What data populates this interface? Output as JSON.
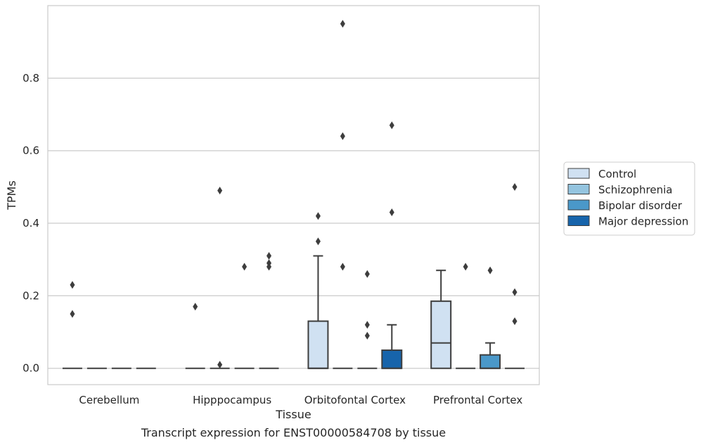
{
  "chart_data": {
    "type": "box",
    "xlabel": "Tissue",
    "ylabel": "TPMs",
    "caption": "Transcript expression for ENST00000584708 by tissue",
    "ylim": [
      -0.045,
      1.0
    ],
    "yticks": [
      0.0,
      0.2,
      0.4,
      0.6,
      0.8
    ],
    "ytick_labels": [
      "0.0",
      "0.2",
      "0.4",
      "0.6",
      "0.8"
    ],
    "grid": "horizontal",
    "legend_position": "right",
    "categories": [
      "Cerebellum",
      "Hipppocampus",
      "Orbitofontal Cortex",
      "Prefrontal Cortex"
    ],
    "series": [
      {
        "name": "Control",
        "color": "#d0e1f2",
        "boxes": [
          {
            "q1": 0,
            "median": 0,
            "q3": 0,
            "whisker_low": 0,
            "whisker_high": 0,
            "outliers": [
              0.23,
              0.15
            ]
          },
          {
            "q1": 0,
            "median": 0,
            "q3": 0,
            "whisker_low": 0,
            "whisker_high": 0,
            "outliers": [
              0.17
            ]
          },
          {
            "q1": 0,
            "median": 0,
            "q3": 0.13,
            "whisker_low": 0,
            "whisker_high": 0.31,
            "outliers": [
              0.42,
              0.35
            ]
          },
          {
            "q1": 0,
            "median": 0.07,
            "q3": 0.185,
            "whisker_low": 0,
            "whisker_high": 0.27,
            "outliers": []
          }
        ]
      },
      {
        "name": "Schizophrenia",
        "color": "#94c4df",
        "boxes": [
          {
            "q1": 0,
            "median": 0,
            "q3": 0,
            "whisker_low": 0,
            "whisker_high": 0,
            "outliers": []
          },
          {
            "q1": 0,
            "median": 0,
            "q3": 0,
            "whisker_low": 0,
            "whisker_high": 0,
            "outliers": [
              0.49,
              0.01
            ]
          },
          {
            "q1": 0,
            "median": 0,
            "q3": 0,
            "whisker_low": 0,
            "whisker_high": 0,
            "outliers": [
              0.95,
              0.64,
              0.28
            ]
          },
          {
            "q1": 0,
            "median": 0,
            "q3": 0,
            "whisker_low": 0,
            "whisker_high": 0,
            "outliers": [
              0.28
            ]
          }
        ]
      },
      {
        "name": "Bipolar disorder",
        "color": "#4a98c9",
        "boxes": [
          {
            "q1": 0,
            "median": 0,
            "q3": 0,
            "whisker_low": 0,
            "whisker_high": 0,
            "outliers": []
          },
          {
            "q1": 0,
            "median": 0,
            "q3": 0,
            "whisker_low": 0,
            "whisker_high": 0,
            "outliers": [
              0.28
            ]
          },
          {
            "q1": 0,
            "median": 0,
            "q3": 0,
            "whisker_low": 0,
            "whisker_high": 0,
            "outliers": [
              0.26,
              0.12,
              0.09
            ]
          },
          {
            "q1": 0,
            "median": 0,
            "q3": 0.037,
            "whisker_low": 0,
            "whisker_high": 0.07,
            "outliers": [
              0.27
            ]
          }
        ]
      },
      {
        "name": "Major depression",
        "color": "#1764ab",
        "boxes": [
          {
            "q1": 0,
            "median": 0,
            "q3": 0,
            "whisker_low": 0,
            "whisker_high": 0,
            "outliers": []
          },
          {
            "q1": 0,
            "median": 0,
            "q3": 0,
            "whisker_low": 0,
            "whisker_high": 0,
            "outliers": [
              0.31,
              0.29,
              0.28
            ]
          },
          {
            "q1": 0,
            "median": 0,
            "q3": 0.05,
            "whisker_low": 0,
            "whisker_high": 0.12,
            "outliers": [
              0.67,
              0.43
            ]
          },
          {
            "q1": 0,
            "median": 0,
            "q3": 0,
            "whisker_low": 0,
            "whisker_high": 0,
            "outliers": [
              0.5,
              0.21,
              0.13
            ]
          }
        ]
      }
    ]
  }
}
